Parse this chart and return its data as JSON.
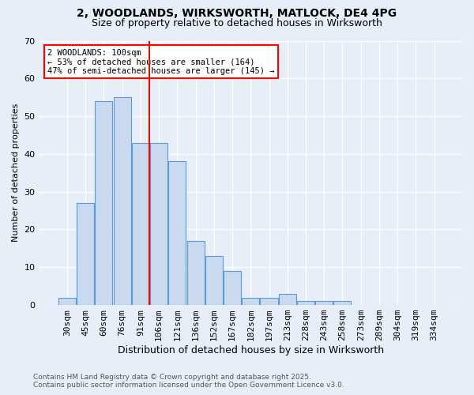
{
  "title1": "2, WOODLANDS, WIRKSWORTH, MATLOCK, DE4 4PG",
  "title2": "Size of property relative to detached houses in Wirksworth",
  "xlabel": "Distribution of detached houses by size in Wirksworth",
  "ylabel": "Number of detached properties",
  "categories": [
    "30sqm",
    "45sqm",
    "60sqm",
    "76sqm",
    "91sqm",
    "106sqm",
    "121sqm",
    "136sqm",
    "152sqm",
    "167sqm",
    "182sqm",
    "197sqm",
    "213sqm",
    "228sqm",
    "243sqm",
    "258sqm",
    "273sqm",
    "289sqm",
    "304sqm",
    "319sqm",
    "334sqm"
  ],
  "values": [
    2,
    27,
    54,
    55,
    43,
    43,
    38,
    17,
    13,
    9,
    2,
    2,
    3,
    1,
    1,
    1,
    0,
    0,
    0,
    0,
    0
  ],
  "bar_color": "#c9d9f0",
  "bar_edge_color": "#5b9bd5",
  "vline_x": 4.5,
  "vline_color": "red",
  "annotation_title": "2 WOODLANDS: 100sqm",
  "annotation_line1": "← 53% of detached houses are smaller (164)",
  "annotation_line2": "47% of semi-detached houses are larger (145) →",
  "annotation_box_color": "white",
  "annotation_box_edge": "red",
  "ylim": [
    0,
    70
  ],
  "yticks": [
    0,
    10,
    20,
    30,
    40,
    50,
    60,
    70
  ],
  "footer1": "Contains HM Land Registry data © Crown copyright and database right 2025.",
  "footer2": "Contains public sector information licensed under the Open Government Licence v3.0.",
  "bg_color": "#e8eef8"
}
